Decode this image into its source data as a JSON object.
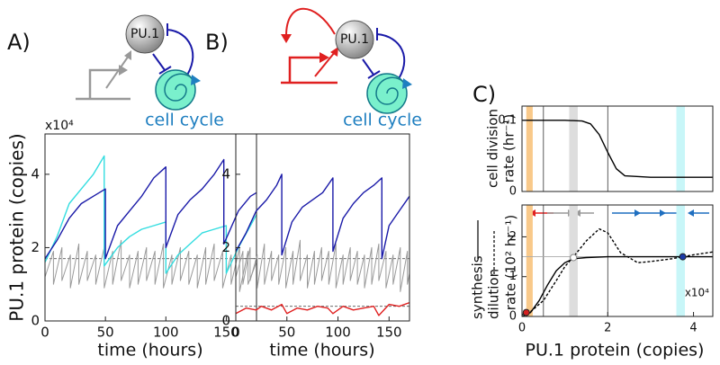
{
  "chart_data": [
    {
      "type": "line",
      "panel": "A)",
      "node_label": "PU.1",
      "process_label": "cell cycle",
      "unit": "x10⁴",
      "xlabel": "time (hours)",
      "ylabel": "PU.1 protein  (copies)",
      "xlim": [
        0,
        175
      ],
      "ylim": [
        0,
        5.1
      ],
      "xticks": [
        0,
        50,
        100,
        150
      ],
      "yticks": [
        0,
        2,
        4
      ],
      "hlines": [
        {
          "value": 1.7,
          "color": "#555555",
          "dash": true
        }
      ],
      "series": [
        {
          "color": "#999999",
          "x": [
            0,
            7,
            7,
            14,
            14,
            21,
            21,
            28,
            28,
            35,
            35,
            42,
            42,
            49,
            49,
            56,
            56,
            63,
            63,
            70,
            70,
            77,
            77,
            84,
            84,
            91,
            91,
            98,
            98,
            105,
            105,
            112,
            112,
            119,
            119,
            126,
            126,
            133,
            133,
            140,
            140,
            147,
            147,
            154,
            154,
            161,
            161,
            168,
            168,
            175
          ],
          "values": [
            1.2,
            1.9,
            1.0,
            2.0,
            1.1,
            1.8,
            0.9,
            2.1,
            1.0,
            1.9,
            1.1,
            1.8,
            1.0,
            2.0,
            0.9,
            1.9,
            1.0,
            2.2,
            1.1,
            1.8,
            0.9,
            1.9,
            1.0,
            2.0,
            1.1,
            1.9,
            1.0,
            2.1,
            0.9,
            1.8,
            1.0,
            2.0,
            1.1,
            1.9,
            1.0,
            1.8,
            0.9,
            2.0,
            1.0,
            2.1,
            1.1,
            1.9,
            0.9,
            1.8,
            1.0,
            2.0,
            0.8,
            1.9,
            1.0,
            1.6
          ]
        },
        {
          "color": "#33dde0",
          "x": [
            0,
            10,
            20,
            30,
            40,
            49,
            49,
            60,
            70,
            80,
            90,
            100,
            100,
            110,
            120,
            130,
            140,
            150,
            150,
            160,
            170,
            175
          ],
          "values": [
            1.6,
            2.3,
            3.2,
            3.6,
            4.0,
            4.5,
            1.5,
            2.0,
            2.3,
            2.5,
            2.6,
            2.7,
            1.3,
            1.8,
            2.1,
            2.4,
            2.5,
            2.6,
            1.3,
            2.0,
            2.6,
            2.9
          ]
        },
        {
          "color": "#1a1aa8",
          "x": [
            0,
            10,
            20,
            30,
            40,
            50,
            50,
            60,
            70,
            80,
            90,
            100,
            100,
            110,
            120,
            130,
            140,
            148,
            148,
            160,
            170,
            175
          ],
          "values": [
            1.7,
            2.2,
            2.8,
            3.2,
            3.4,
            3.6,
            1.7,
            2.6,
            3.0,
            3.4,
            3.9,
            4.2,
            2.0,
            2.9,
            3.3,
            3.6,
            4.0,
            4.4,
            2.1,
            3.0,
            3.4,
            3.5
          ]
        }
      ]
    },
    {
      "type": "line",
      "panel": "B)",
      "node_label": "PU.1",
      "process_label": "cell cycle",
      "xlabel": "time (hours)",
      "xlim": [
        0,
        170
      ],
      "ylim": [
        0,
        5.1
      ],
      "xticks": [
        0,
        50,
        100,
        150
      ],
      "yticks": [
        0,
        2,
        4
      ],
      "hlines": [
        {
          "value": 1.7,
          "color": "#555555",
          "dash": true
        },
        {
          "value": 0.4,
          "color": "#555555",
          "dash": true
        }
      ],
      "series": [
        {
          "color": "#999999",
          "x": [
            0,
            7,
            7,
            14,
            14,
            21,
            21,
            28,
            28,
            35,
            35,
            42,
            42,
            49,
            49,
            56,
            56,
            63,
            63,
            70,
            70,
            77,
            77,
            84,
            84,
            91,
            91,
            98,
            98,
            105,
            105,
            112,
            112,
            119,
            119,
            126,
            126,
            133,
            133,
            140,
            140,
            147,
            147,
            154,
            154,
            161,
            161,
            168,
            168,
            170
          ],
          "values": [
            1.2,
            1.9,
            1.0,
            2.0,
            1.1,
            1.8,
            0.9,
            2.1,
            1.0,
            1.9,
            1.1,
            1.8,
            1.0,
            2.0,
            0.9,
            1.9,
            1.0,
            2.2,
            1.1,
            1.8,
            0.9,
            1.9,
            1.0,
            2.0,
            1.1,
            1.9,
            1.0,
            2.1,
            0.9,
            1.8,
            1.0,
            2.0,
            1.1,
            1.9,
            1.0,
            1.8,
            0.9,
            2.0,
            1.0,
            2.1,
            1.1,
            1.9,
            0.9,
            1.8,
            1.0,
            2.0,
            0.8,
            1.9,
            1.0,
            1.3
          ]
        },
        {
          "color": "#e02020",
          "x": [
            0,
            10,
            20,
            25,
            35,
            45,
            50,
            60,
            70,
            80,
            90,
            95,
            105,
            115,
            125,
            135,
            140,
            150,
            160,
            170
          ],
          "values": [
            0.2,
            0.35,
            0.3,
            0.4,
            0.3,
            0.45,
            0.2,
            0.35,
            0.3,
            0.4,
            0.35,
            0.2,
            0.4,
            0.3,
            0.35,
            0.4,
            0.15,
            0.45,
            0.4,
            0.5
          ]
        },
        {
          "color": "#1a1aa8",
          "x": [
            0,
            10,
            20,
            30,
            40,
            45,
            45,
            55,
            65,
            75,
            85,
            95,
            95,
            105,
            115,
            125,
            135,
            143,
            143,
            150,
            160,
            170
          ],
          "values": [
            1.9,
            2.4,
            3.0,
            3.3,
            3.7,
            4.0,
            1.8,
            2.7,
            3.1,
            3.3,
            3.5,
            3.9,
            1.9,
            2.8,
            3.2,
            3.5,
            3.7,
            3.9,
            1.7,
            2.6,
            3.0,
            3.4
          ]
        }
      ]
    },
    {
      "type": "line",
      "panel": "C)",
      "ylabel": [
        "cell division",
        "rate (hr⁻¹)"
      ],
      "xlim": [
        0,
        4.45
      ],
      "ylim": [
        0,
        0.12
      ],
      "yticks": [
        0,
        0.1
      ],
      "bands": [
        {
          "range": [
            0.1,
            0.25
          ],
          "color": "#f9c98a"
        },
        {
          "range": [
            1.1,
            1.3
          ],
          "color": "#dddddd"
        },
        {
          "range": [
            3.6,
            3.8
          ],
          "color": "#c8f6f8"
        }
      ],
      "vlines": [
        0.5,
        2
      ],
      "series": [
        {
          "color": "#000000",
          "x": [
            0,
            0.5,
            1,
            1.4,
            1.6,
            1.8,
            2,
            2.2,
            2.4,
            3,
            4,
            4.45
          ],
          "values": [
            0.1,
            0.1,
            0.1,
            0.099,
            0.095,
            0.08,
            0.055,
            0.032,
            0.022,
            0.02,
            0.02,
            0.02
          ]
        }
      ]
    },
    {
      "type": "line",
      "unit": "x10⁴",
      "xlabel": "PU.1 protein (copies)",
      "ylabel": [
        "synthesis",
        "dilution",
        "rate  (10² hr⁻¹)"
      ],
      "xlim": [
        0,
        4.45
      ],
      "ylim": [
        0,
        2.8
      ],
      "xticks": [
        0,
        2,
        4
      ],
      "yticks": [
        0,
        1,
        2
      ],
      "bands": [
        {
          "range": [
            0.1,
            0.25
          ],
          "color": "#f9c98a"
        },
        {
          "range": [
            1.1,
            1.3
          ],
          "color": "#dddddd"
        },
        {
          "range": [
            3.6,
            3.8
          ],
          "color": "#c8f6f8"
        }
      ],
      "vlines": [
        0.5,
        2
      ],
      "hlines": [
        {
          "value": 1.5,
          "color": "#aaaaaa",
          "dash": false
        }
      ],
      "series": [
        {
          "color": "#000000",
          "x": [
            0,
            0.2,
            0.4,
            0.6,
            0.8,
            1,
            1.2,
            1.5,
            2,
            3,
            4,
            4.45
          ],
          "values": [
            0,
            0.1,
            0.4,
            0.8,
            1.15,
            1.35,
            1.45,
            1.48,
            1.5,
            1.5,
            1.5,
            1.5
          ]
        },
        {
          "color": "#000000",
          "dash": true,
          "x": [
            0,
            0.2,
            0.5,
            0.8,
            1,
            1.2,
            1.5,
            1.8,
            2,
            2.3,
            2.7,
            3,
            3.5,
            4,
            4.45
          ],
          "values": [
            0.05,
            0.12,
            0.4,
            0.9,
            1.25,
            1.5,
            1.9,
            2.2,
            2.1,
            1.6,
            1.35,
            1.38,
            1.45,
            1.55,
            1.62
          ]
        }
      ],
      "points": [
        {
          "x": 0.1,
          "y": 0.1,
          "color": "#d42020"
        },
        {
          "x": 1.2,
          "y": 1.48,
          "color": "#888888",
          "open": true
        },
        {
          "x": 3.75,
          "y": 1.5,
          "color": "#1a3aa8"
        }
      ]
    }
  ]
}
